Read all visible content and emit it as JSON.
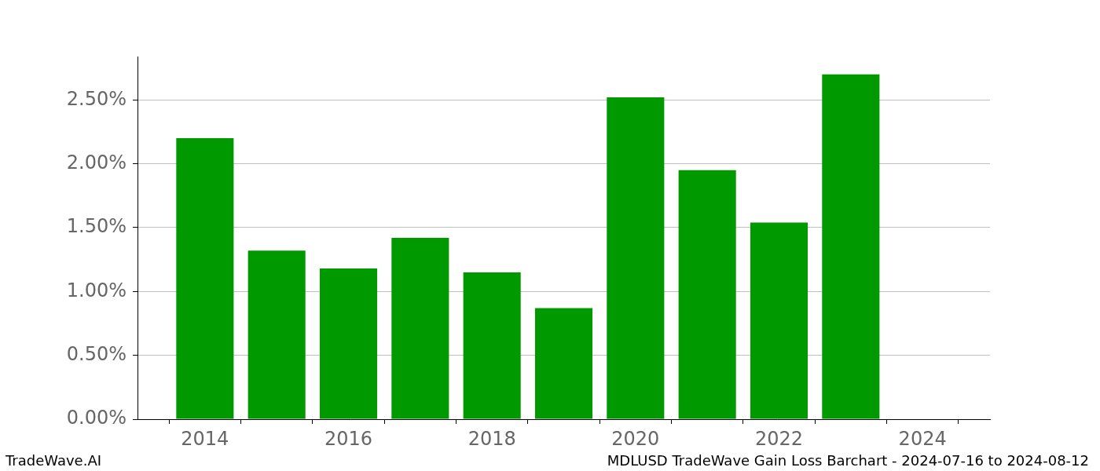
{
  "chart_data": {
    "type": "bar",
    "title": "MDLUSD TradeWave Gain Loss Barchart - 2024-07-16 to 2024-08-12",
    "annotations": [
      "TradeWave.AI"
    ],
    "x": [
      2014,
      2015,
      2016,
      2017,
      2018,
      2019,
      2020,
      2021,
      2022,
      2023,
      2024
    ],
    "values": [
      2.2,
      1.32,
      1.18,
      1.42,
      1.15,
      0.87,
      2.52,
      1.95,
      1.54,
      2.7,
      0
    ],
    "color": "#009900",
    "xlim": [
      2013.06,
      2024.94
    ],
    "xticks": [
      2014,
      2016,
      2018,
      2020,
      2022,
      2024
    ],
    "ylim": [
      0,
      2.84
    ],
    "yticks": [
      {
        "value": 0,
        "label": "0.00%"
      },
      {
        "value": 0.5,
        "label": "0.50%"
      },
      {
        "value": 1,
        "label": "1.00%"
      },
      {
        "value": 1.5,
        "label": "1.50%"
      },
      {
        "value": 2,
        "label": "2.00%"
      },
      {
        "value": 2.5,
        "label": "2.50%"
      }
    ],
    "grid": true
  }
}
